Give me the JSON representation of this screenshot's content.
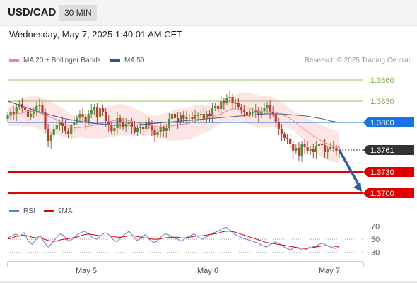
{
  "header": {
    "symbol": "USD/CAD",
    "interval": "30 MIN",
    "timestamp": "Wednesday, May 7, 2025 1:40:01 AM CET"
  },
  "legend": {
    "ma20": "MA 20 + Bollinger Bands",
    "ma50": "MA 50",
    "source": "Research © 2025 Trading Central",
    "rsi": "RSI",
    "ma9": "9MA"
  },
  "colors": {
    "bullish": "#5a8a3c",
    "bearish": "#c0392b",
    "ma20": "#f08a8a",
    "bands": "#fde0e0",
    "ma50": "#4a5f8a",
    "resistance": "#7cb342",
    "pivot": "#1a73e8",
    "support": "#e00000",
    "current": "#333333",
    "rsi": "#5b7fdc",
    "rsi_ma": "#e00000"
  },
  "chart_data": [
    {
      "type": "candlestick",
      "title": "",
      "x_labels": [
        "May 5",
        "May 6",
        "May 7"
      ],
      "ylim": [
        1.3685,
        1.3875
      ],
      "levels": [
        {
          "name": "resistance-2",
          "value": 1.386,
          "label": "1.3860",
          "style": "resistance"
        },
        {
          "name": "resistance-1",
          "value": 1.383,
          "label": "1.3830",
          "style": "resistance"
        },
        {
          "name": "pivot",
          "value": 1.38,
          "label": "1.3800",
          "style": "pivot"
        },
        {
          "name": "last-price",
          "value": 1.3761,
          "label": "1.3761",
          "style": "current"
        },
        {
          "name": "support-1",
          "value": 1.373,
          "label": "1.3730",
          "style": "support"
        },
        {
          "name": "support-2",
          "value": 1.37,
          "label": "1.3700",
          "style": "support"
        }
      ],
      "forecast_arrow": {
        "from": 1.3761,
        "to": 1.37
      },
      "close_series": [
        1.381,
        1.3815,
        1.3812,
        1.3822,
        1.3826,
        1.382,
        1.3818,
        1.3808,
        1.3812,
        1.3817,
        1.3823,
        1.3825,
        1.3815,
        1.379,
        1.3773,
        1.3782,
        1.379,
        1.3796,
        1.38,
        1.3795,
        1.3788,
        1.3784,
        1.3797,
        1.3801,
        1.3806,
        1.3812,
        1.3808,
        1.38,
        1.3812,
        1.3818,
        1.3822,
        1.3808,
        1.382,
        1.3815,
        1.3802,
        1.3796,
        1.3788,
        1.3792,
        1.3806,
        1.38,
        1.3793,
        1.3798,
        1.38,
        1.3794,
        1.3787,
        1.3792,
        1.3793,
        1.379,
        1.38,
        1.3796,
        1.3789,
        1.3782,
        1.3786,
        1.3793,
        1.3788,
        1.3792,
        1.3805,
        1.3812,
        1.3806,
        1.38,
        1.381,
        1.3805,
        1.3808,
        1.3808,
        1.3805,
        1.381,
        1.381,
        1.3812,
        1.3805,
        1.3812,
        1.3809,
        1.382,
        1.3823,
        1.3819,
        1.383,
        1.3828,
        1.3834,
        1.3836,
        1.3827,
        1.3827,
        1.3822,
        1.3818,
        1.3815,
        1.3811,
        1.3814,
        1.3814,
        1.3818,
        1.381,
        1.3816,
        1.382,
        1.3825,
        1.3815,
        1.3812,
        1.38,
        1.379,
        1.3783,
        1.3778,
        1.3776,
        1.377,
        1.376,
        1.3764,
        1.3752,
        1.377,
        1.3765,
        1.376,
        1.3763,
        1.3758,
        1.3766,
        1.377,
        1.3768,
        1.3758,
        1.3763,
        1.3765,
        1.3764,
        1.376,
        1.3761
      ],
      "ma20_series": [
        1.3808,
        1.381,
        1.3812,
        1.3813,
        1.3815,
        1.3816,
        1.3815,
        1.3813,
        1.3811,
        1.3809,
        1.3806,
        1.3803,
        1.38,
        1.3797,
        1.3794,
        1.3792,
        1.3793,
        1.3794,
        1.3795,
        1.3796,
        1.3798,
        1.3799,
        1.3801,
        1.3802,
        1.3803,
        1.3804,
        1.3803,
        1.3802,
        1.38,
        1.3799,
        1.3797,
        1.3796,
        1.3795,
        1.3794,
        1.3794,
        1.3794,
        1.3795,
        1.3796,
        1.3797,
        1.3798,
        1.3799,
        1.3801,
        1.3803,
        1.3805,
        1.3806,
        1.3808,
        1.381,
        1.3812,
        1.3815,
        1.3818,
        1.382,
        1.3821,
        1.3821,
        1.382,
        1.3818,
        1.3816,
        1.3815,
        1.3815,
        1.3815,
        1.3814,
        1.3812,
        1.3809,
        1.3806,
        1.3802,
        1.3797,
        1.3792,
        1.3787,
        1.3782,
        1.3778,
        1.3774,
        1.3771,
        1.3768,
        1.3766,
        1.3765
      ],
      "ma50_series": [
        1.383,
        1.3826,
        1.3822,
        1.3818,
        1.3814,
        1.3811,
        1.3808,
        1.3805,
        1.3803,
        1.3801,
        1.3799,
        1.3798,
        1.3797,
        1.3796,
        1.3796,
        1.3796,
        1.3797,
        1.3798,
        1.3799,
        1.38,
        1.3801,
        1.3802,
        1.3803,
        1.3804,
        1.3805,
        1.3806,
        1.3807,
        1.3808,
        1.3809,
        1.381,
        1.3811,
        1.3812,
        1.3812,
        1.3812,
        1.3811,
        1.381,
        1.3809,
        1.3807,
        1.3805,
        1.3802,
        1.38
      ]
    },
    {
      "type": "line",
      "title": "RSI",
      "y_ticks": [
        70,
        50,
        30
      ],
      "ylim": [
        20,
        78
      ],
      "series": [
        {
          "name": "RSI",
          "values": [
            52,
            55,
            58,
            54,
            60,
            48,
            42,
            50,
            56,
            45,
            38,
            44,
            52,
            58,
            55,
            47,
            50,
            56,
            60,
            62,
            58,
            52,
            50,
            55,
            60,
            57,
            50,
            46,
            52,
            58,
            62,
            55,
            48,
            52,
            57,
            50,
            45,
            47,
            54,
            58,
            56,
            52,
            50,
            47,
            52,
            55,
            58,
            54,
            50,
            53,
            57,
            60,
            62,
            66,
            68,
            64,
            58,
            55,
            52,
            50,
            48,
            46,
            44,
            40,
            38,
            42,
            46,
            44,
            40,
            36,
            34,
            38,
            36,
            33,
            35,
            40,
            38,
            42,
            44,
            40,
            38,
            36,
            38
          ]
        },
        {
          "name": "9MA",
          "values": [
            50,
            52,
            54,
            55,
            56,
            55,
            53,
            52,
            52,
            50,
            48,
            47,
            47,
            49,
            50,
            51,
            52,
            53,
            55,
            57,
            58,
            57,
            56,
            55,
            55,
            55,
            54,
            53,
            53,
            54,
            55,
            55,
            54,
            53,
            52,
            51,
            50,
            50,
            51,
            52,
            53,
            53,
            53,
            52,
            52,
            53,
            54,
            55,
            55,
            56,
            57,
            58,
            59,
            61,
            62,
            62,
            61,
            59,
            57,
            55,
            53,
            51,
            49,
            47,
            45,
            44,
            43,
            42,
            41,
            40,
            39,
            38,
            37,
            36,
            36,
            37,
            38,
            39,
            40,
            40,
            40,
            39,
            39
          ]
        }
      ]
    }
  ]
}
